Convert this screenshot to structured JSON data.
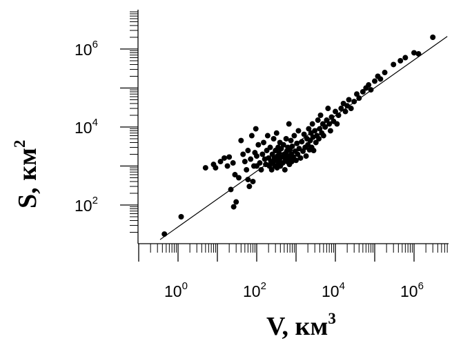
{
  "chart_data": {
    "type": "scatter",
    "title": "",
    "xlabel": {
      "main": "V, км",
      "sup": "3"
    },
    "ylabel": {
      "main": "S, км",
      "sup": "2"
    },
    "x_scale": "log",
    "y_scale": "log",
    "xlim": [
      0.1,
      10000000.0
    ],
    "ylim": [
      10,
      10000000.0
    ],
    "x_tick_labels": [
      {
        "value": 1,
        "base": "10",
        "exp": "0"
      },
      {
        "value": 100,
        "base": "10",
        "exp": "2"
      },
      {
        "value": 10000,
        "base": "10",
        "exp": "4"
      },
      {
        "value": 1000000,
        "base": "10",
        "exp": "6"
      }
    ],
    "y_tick_labels": [
      {
        "value": 100,
        "base": "10",
        "exp": "2"
      },
      {
        "value": 10000,
        "base": "10",
        "exp": "4"
      },
      {
        "value": 1000000,
        "base": "10",
        "exp": "6"
      }
    ],
    "grid": false,
    "legend": "none",
    "marker_color": "#000000",
    "fit_line": {
      "x": [
        0.35,
        7000000
      ],
      "y": [
        13,
        2100000
      ],
      "color": "#000000"
    },
    "points": [
      [
        0.45,
        18
      ],
      [
        1.2,
        50
      ],
      [
        5,
        900
      ],
      [
        8,
        1100
      ],
      [
        9,
        900
      ],
      [
        12,
        1300
      ],
      [
        15,
        1600
      ],
      [
        18,
        1000
      ],
      [
        20,
        1700
      ],
      [
        22,
        250
      ],
      [
        25,
        1200
      ],
      [
        26,
        90
      ],
      [
        28,
        600
      ],
      [
        30,
        120
      ],
      [
        35,
        500
      ],
      [
        40,
        4500
      ],
      [
        45,
        2000
      ],
      [
        50,
        1300
      ],
      [
        55,
        800
      ],
      [
        60,
        2500
      ],
      [
        60,
        450
      ],
      [
        65,
        300
      ],
      [
        70,
        1500
      ],
      [
        75,
        6000
      ],
      [
        80,
        400
      ],
      [
        85,
        1000
      ],
      [
        90,
        2200
      ],
      [
        95,
        9000
      ],
      [
        100,
        1800
      ],
      [
        100,
        1000
      ],
      [
        110,
        3500
      ],
      [
        120,
        1200
      ],
      [
        130,
        800
      ],
      [
        140,
        2000
      ],
      [
        150,
        4000
      ],
      [
        160,
        1500
      ],
      [
        170,
        1100
      ],
      [
        180,
        2500
      ],
      [
        190,
        6000
      ],
      [
        200,
        1600
      ],
      [
        210,
        1000
      ],
      [
        220,
        3000
      ],
      [
        230,
        1300
      ],
      [
        240,
        800
      ],
      [
        250,
        2000
      ],
      [
        260,
        1200
      ],
      [
        270,
        5000
      ],
      [
        280,
        1600
      ],
      [
        290,
        1000
      ],
      [
        300,
        2500
      ],
      [
        310,
        1400
      ],
      [
        320,
        7000
      ],
      [
        330,
        900
      ],
      [
        340,
        1800
      ],
      [
        350,
        3000
      ],
      [
        360,
        1200
      ],
      [
        370,
        2200
      ],
      [
        380,
        1500
      ],
      [
        390,
        4000
      ],
      [
        400,
        1000
      ],
      [
        420,
        2800
      ],
      [
        440,
        1700
      ],
      [
        460,
        1200
      ],
      [
        480,
        3500
      ],
      [
        500,
        2000
      ],
      [
        520,
        800
      ],
      [
        540,
        1500
      ],
      [
        560,
        5000
      ],
      [
        580,
        2400
      ],
      [
        600,
        1300
      ],
      [
        620,
        3000
      ],
      [
        640,
        1800
      ],
      [
        660,
        12000
      ],
      [
        680,
        1100
      ],
      [
        700,
        2600
      ],
      [
        720,
        1600
      ],
      [
        740,
        4500
      ],
      [
        760,
        2000
      ],
      [
        780,
        1300
      ],
      [
        800,
        3200
      ],
      [
        850,
        1700
      ],
      [
        900,
        6000
      ],
      [
        950,
        2400
      ],
      [
        1000,
        1400
      ],
      [
        1050,
        3800
      ],
      [
        1100,
        2000
      ],
      [
        1150,
        8000
      ],
      [
        1200,
        2800
      ],
      [
        1300,
        1600
      ],
      [
        1400,
        4200
      ],
      [
        1500,
        2400
      ],
      [
        1600,
        6500
      ],
      [
        1700,
        3000
      ],
      [
        1800,
        1800
      ],
      [
        1900,
        5000
      ],
      [
        2000,
        3500
      ],
      [
        2100,
        9000
      ],
      [
        2200,
        2600
      ],
      [
        2300,
        4500
      ],
      [
        2400,
        7000
      ],
      [
        2500,
        3000
      ],
      [
        2600,
        12000
      ],
      [
        2700,
        5500
      ],
      [
        2800,
        2500
      ],
      [
        3000,
        8000
      ],
      [
        3200,
        4000
      ],
      [
        3400,
        6000
      ],
      [
        3600,
        15000
      ],
      [
        3800,
        5000
      ],
      [
        4000,
        9000
      ],
      [
        4200,
        20000
      ],
      [
        4500,
        7000
      ],
      [
        4800,
        12000
      ],
      [
        5000,
        6000
      ],
      [
        5500,
        10000
      ],
      [
        6000,
        15000
      ],
      [
        6500,
        30000
      ],
      [
        7000,
        12000
      ],
      [
        7500,
        8000
      ],
      [
        8000,
        18000
      ],
      [
        9000,
        14000
      ],
      [
        10000,
        25000
      ],
      [
        11000,
        12000
      ],
      [
        12000,
        20000
      ],
      [
        14000,
        30000
      ],
      [
        16000,
        40000
      ],
      [
        18000,
        25000
      ],
      [
        20000,
        35000
      ],
      [
        22000,
        50000
      ],
      [
        25000,
        30000
      ],
      [
        30000,
        45000
      ],
      [
        35000,
        70000
      ],
      [
        40000,
        55000
      ],
      [
        50000,
        80000
      ],
      [
        60000,
        100000
      ],
      [
        70000,
        120000
      ],
      [
        80000,
        90000
      ],
      [
        100000,
        150000
      ],
      [
        120000,
        200000
      ],
      [
        140000,
        170000
      ],
      [
        180000,
        250000
      ],
      [
        300000,
        400000
      ],
      [
        450000,
        500000
      ],
      [
        600000,
        600000
      ],
      [
        1000000,
        800000
      ],
      [
        1300000,
        750000
      ],
      [
        3000000,
        2000000
      ]
    ]
  }
}
